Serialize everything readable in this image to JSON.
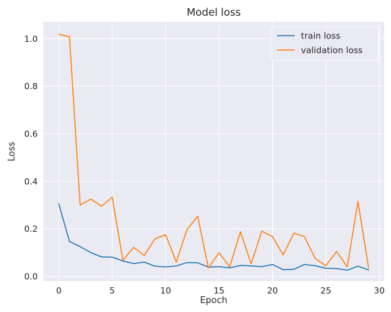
{
  "chart_data": {
    "type": "line",
    "title": "Model loss",
    "xlabel": "Epoch",
    "ylabel": "Loss",
    "xlim": [
      -1.45,
      30.45
    ],
    "ylim": [
      -0.02,
      1.07
    ],
    "xticks": [
      0,
      5,
      10,
      15,
      20,
      25,
      30
    ],
    "yticks": [
      0.0,
      0.2,
      0.4,
      0.6,
      0.8,
      1.0
    ],
    "xtick_labels": [
      "0",
      "5",
      "10",
      "15",
      "20",
      "25",
      "30"
    ],
    "ytick_labels": [
      "0.0",
      "0.2",
      "0.4",
      "0.6",
      "0.8",
      "1.0"
    ],
    "grid": true,
    "legend_position": "top-right",
    "x": [
      0,
      1,
      2,
      3,
      4,
      5,
      6,
      7,
      8,
      9,
      10,
      11,
      12,
      13,
      14,
      15,
      16,
      17,
      18,
      19,
      20,
      21,
      22,
      23,
      24,
      25,
      26,
      27,
      28,
      29
    ],
    "series": [
      {
        "name": "train loss",
        "color": "#1f77b4",
        "values": [
          0.305,
          0.147,
          0.125,
          0.1,
          0.082,
          0.081,
          0.065,
          0.054,
          0.06,
          0.043,
          0.04,
          0.044,
          0.058,
          0.057,
          0.039,
          0.041,
          0.036,
          0.046,
          0.044,
          0.041,
          0.05,
          0.028,
          0.03,
          0.05,
          0.045,
          0.034,
          0.033,
          0.026,
          0.043,
          0.027
        ]
      },
      {
        "name": "validation loss",
        "color": "#ff7f0e",
        "values": [
          1.018,
          1.008,
          0.3,
          0.325,
          0.295,
          0.333,
          0.068,
          0.122,
          0.088,
          0.158,
          0.175,
          0.06,
          0.197,
          0.253,
          0.035,
          0.1,
          0.04,
          0.188,
          0.053,
          0.19,
          0.167,
          0.09,
          0.182,
          0.167,
          0.075,
          0.045,
          0.105,
          0.04,
          0.315,
          0.035
        ]
      }
    ]
  },
  "style": {
    "plot_background": "#eaeaf2",
    "grid_color": "#ffffff",
    "text_color": "#262626"
  }
}
